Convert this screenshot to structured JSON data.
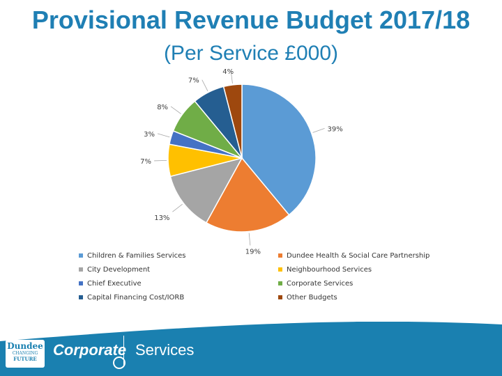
{
  "title": "Provisional Revenue Budget 2017/18",
  "subtitle": "(Per Service £000)",
  "chart_data": {
    "type": "pie",
    "title": "Provisional Revenue Budget 2017/18",
    "subtitle": "(Per Service £000)",
    "legend_position": "bottom",
    "series": [
      {
        "name": "Children & Families Services",
        "value": 39,
        "label": "39%",
        "color": "#5b9bd5"
      },
      {
        "name": "Dundee Health & Social Care Partnership",
        "value": 19,
        "label": "19%",
        "color": "#ed7d31"
      },
      {
        "name": "City Development",
        "value": 13,
        "label": "13%",
        "color": "#a5a5a5"
      },
      {
        "name": "Neighbourhood Services",
        "value": 7,
        "label": "7%",
        "color": "#ffc000"
      },
      {
        "name": "Chief Executive",
        "value": 3,
        "label": "3%",
        "color": "#4472c4"
      },
      {
        "name": "Corporate Services",
        "value": 8,
        "label": "8%",
        "color": "#70ad47"
      },
      {
        "name": "Capital Financing Cost/IORB",
        "value": 7,
        "label": "7%",
        "color": "#255e91"
      },
      {
        "name": "Other Budgets",
        "value": 4,
        "label": "4%",
        "color": "#9e480e"
      }
    ]
  },
  "footer": {
    "corporate": "Corporate",
    "services": "Services",
    "logo_line1": "Dundee",
    "logo_line2": "CHANGING",
    "logo_line3": "FUTURE"
  }
}
